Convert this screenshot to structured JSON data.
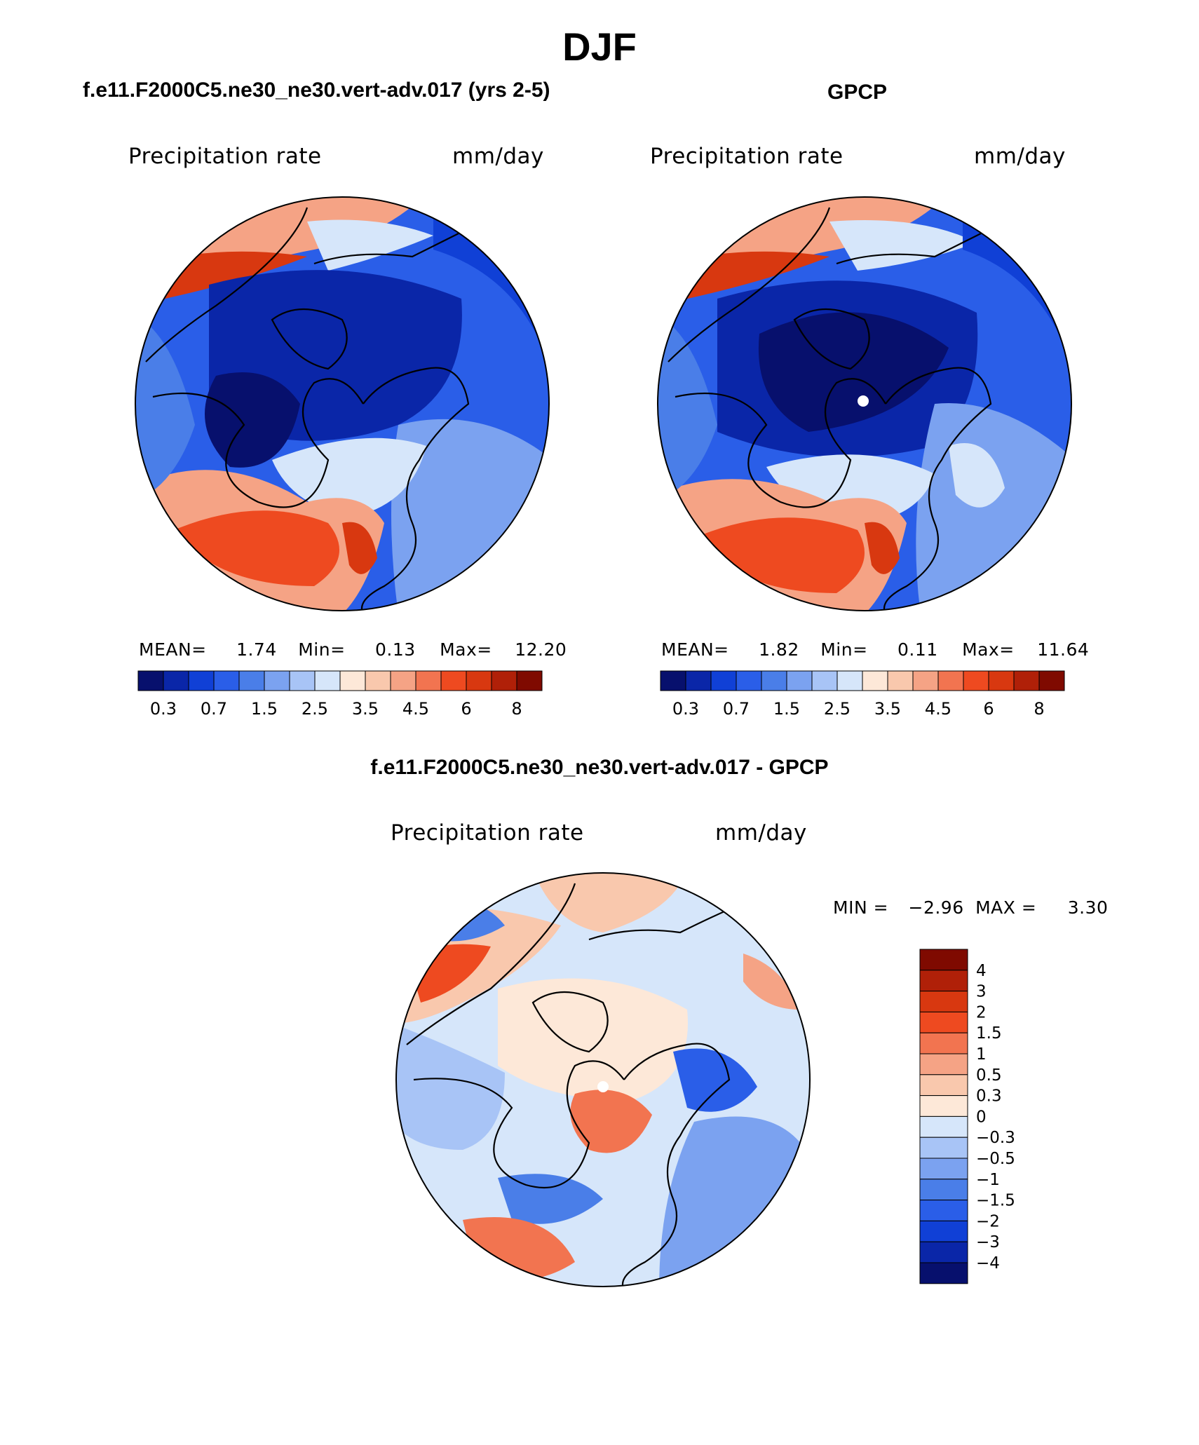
{
  "page_title": "DJF",
  "panel_model": {
    "title": "f.e11.F2000C5.ne30_ne30.vert-adv.017 (yrs 2-5)",
    "left_string": "Precipitation rate",
    "right_string": "mm/day",
    "stats": {
      "mean_label": "MEAN=",
      "mean": "1.74",
      "min_label": "Min=",
      "min": "0.13",
      "max_label": "Max=",
      "max": "12.20"
    }
  },
  "panel_obs": {
    "title": "GPCP",
    "left_string": "Precipitation rate",
    "right_string": "mm/day",
    "stats": {
      "mean_label": "MEAN=",
      "mean": "1.82",
      "min_label": "Min=",
      "min": "0.11",
      "max_label": "Max=",
      "max": "11.64"
    }
  },
  "panel_diff": {
    "title": "f.e11.F2000C5.ne30_ne30.vert-adv.017 - GPCP",
    "left_string": "Precipitation rate",
    "right_string": "mm/day",
    "min_label": "MIN =",
    "min": "−2.96",
    "max_label": "MAX =",
    "max": "3.30"
  },
  "abs_colorbar": {
    "colors": [
      "#07106d",
      "#0a26a8",
      "#1040d6",
      "#2a5ee8",
      "#4a7ee8",
      "#7ba2f0",
      "#a8c4f6",
      "#d6e6fa",
      "#fde8d8",
      "#f9c8ad",
      "#f5a385",
      "#f27450",
      "#ee4a20",
      "#d83810",
      "#b02008",
      "#7f0a00"
    ],
    "tick_labels": [
      "0.3",
      "0.7",
      "1.5",
      "2.5",
      "3.5",
      "4.5",
      "6",
      "8"
    ]
  },
  "diff_colorbar": {
    "colors": [
      "#7f0a00",
      "#b02008",
      "#d83810",
      "#ee4a20",
      "#f27450",
      "#f5a385",
      "#f9c8ad",
      "#fde8d8",
      "#d6e6fa",
      "#a8c4f6",
      "#7ba2f0",
      "#4a7ee8",
      "#2a5ee8",
      "#1040d6",
      "#0a26a8",
      "#07106d"
    ],
    "tick_labels": [
      "4",
      "3",
      "2",
      "1.5",
      "1",
      "0.5",
      "0.3",
      "0",
      "−0.3",
      "−0.5",
      "−1",
      "−1.5",
      "−2",
      "−3",
      "−4"
    ]
  },
  "map_colors": {
    "deep_blue": "#0a26a8",
    "blue": "#2a5ee8",
    "mid_blue": "#4a7ee8",
    "light_blue": "#7ba2f0",
    "pale_blue": "#d6e6fa",
    "cream": "#fde8d8",
    "salmon": "#f5a385",
    "orange": "#ee4a20",
    "dark_red": "#b02008",
    "navy": "#07106d"
  }
}
